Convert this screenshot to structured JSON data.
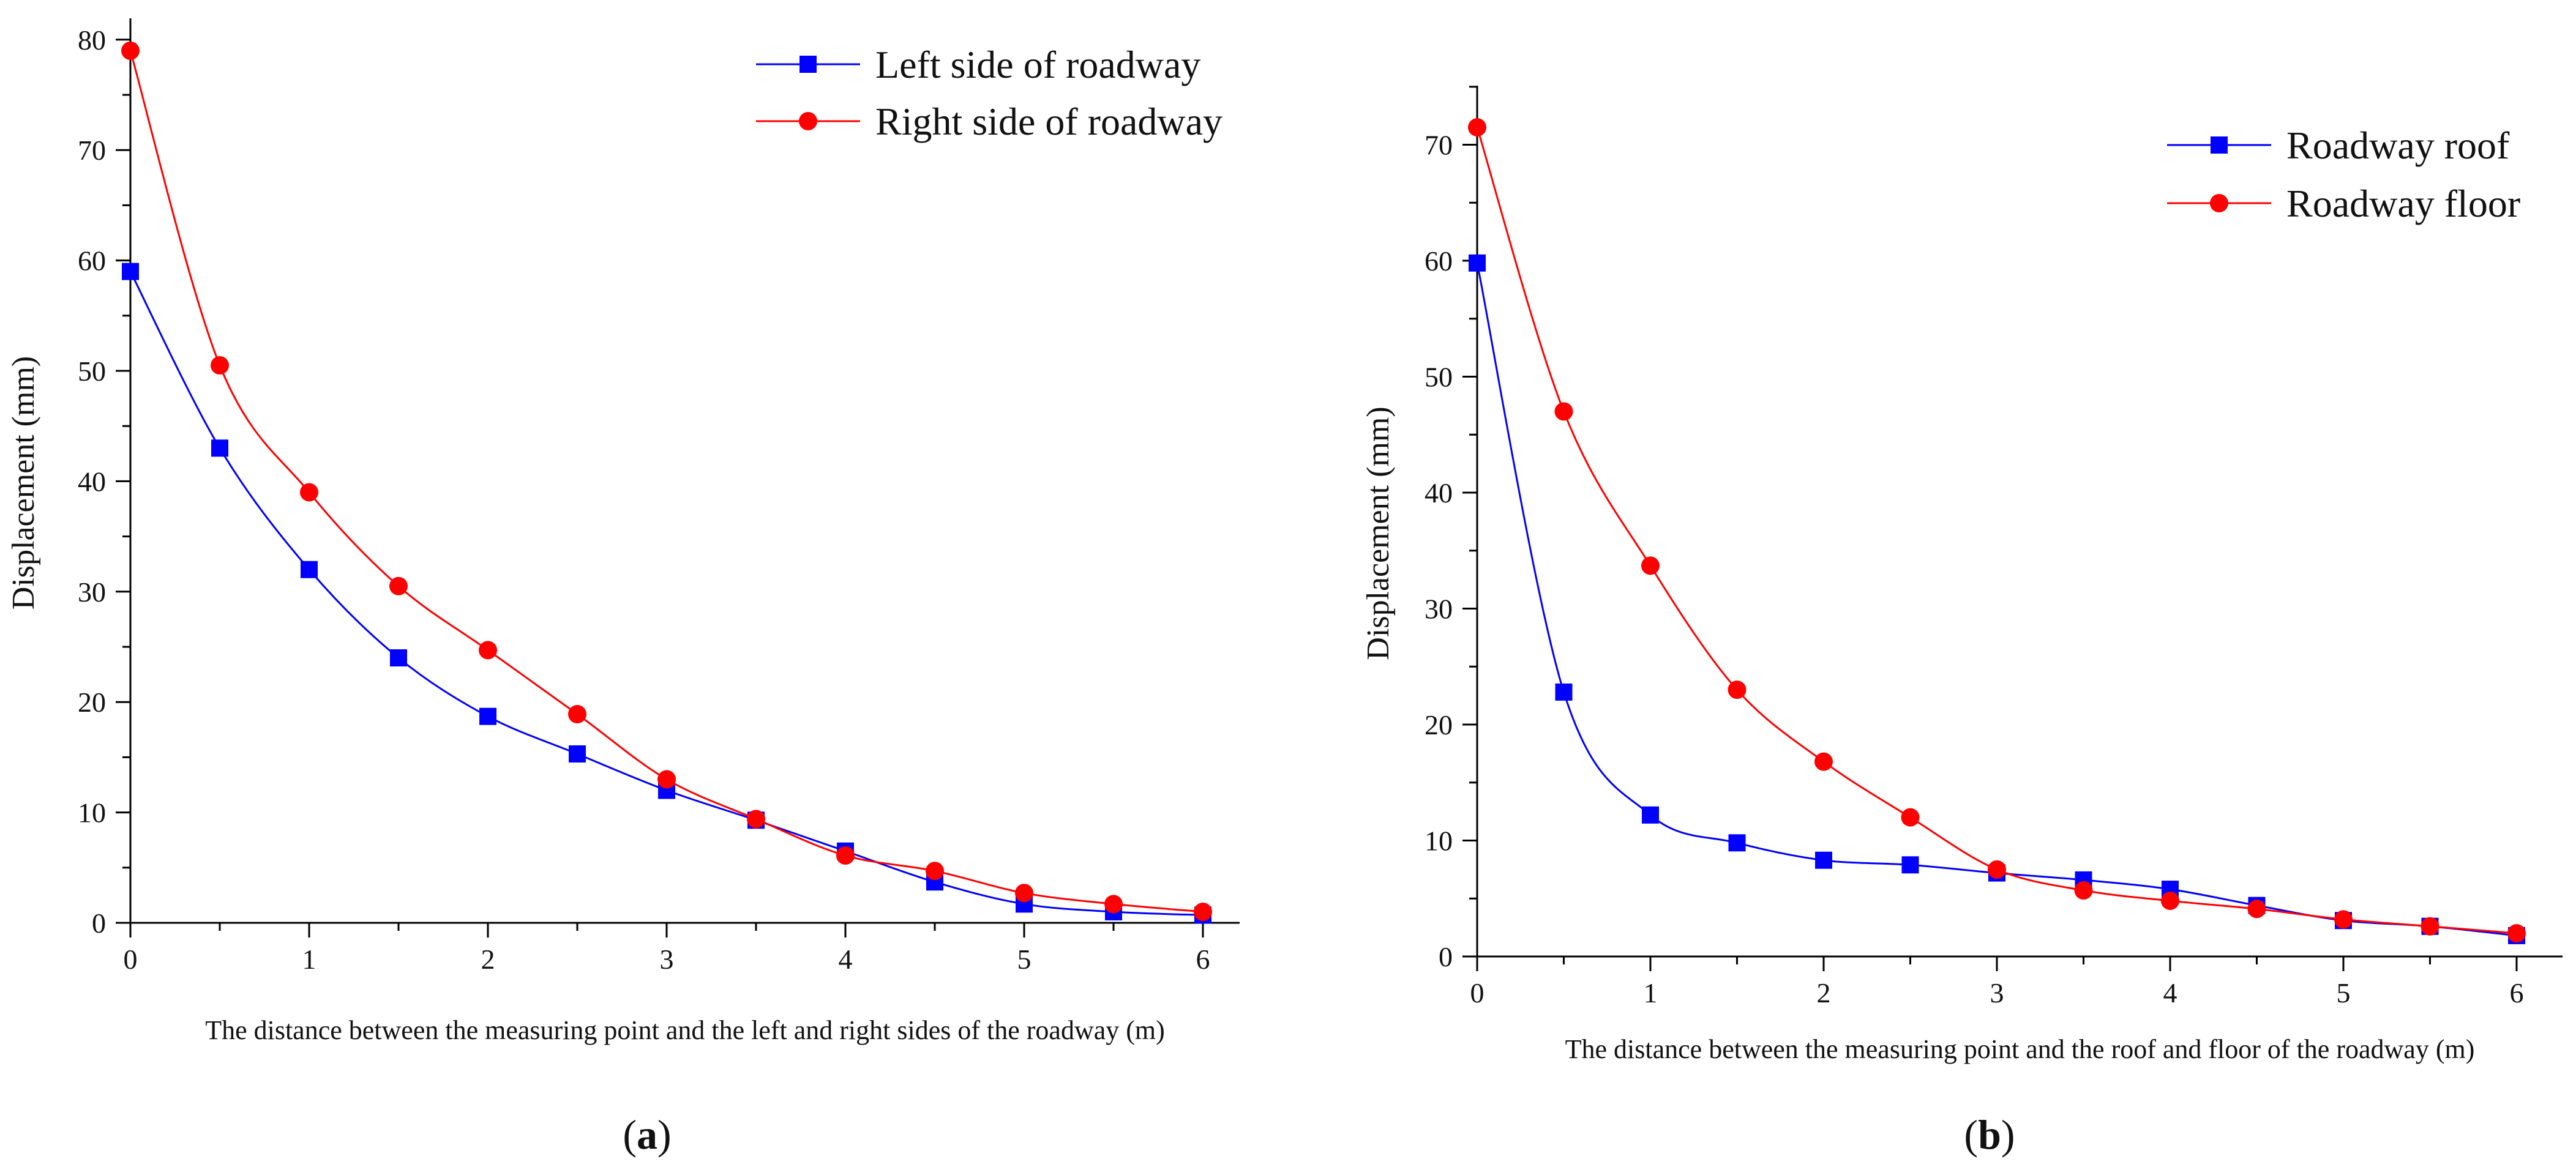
{
  "chart_data": [
    {
      "type": "line",
      "panel_label": "a",
      "caption_open": "(",
      "caption_close": ")",
      "xlabel": "The distance between the measuring point and the left and right sides of the roadway (m)",
      "ylabel": "Displacement (mm)",
      "xlim": [
        0,
        6.2
      ],
      "ylim": [
        0,
        80
      ],
      "xticks": [
        0,
        1,
        2,
        3,
        4,
        5,
        6
      ],
      "yticks": [
        0,
        10,
        20,
        30,
        40,
        50,
        60,
        70,
        80
      ],
      "legend_position": "top-right",
      "series": [
        {
          "name": "Left side of roadway",
          "color": "#0000ff",
          "marker": "square",
          "x": [
            0,
            0.5,
            1,
            1.5,
            2,
            2.5,
            3,
            3.5,
            4,
            4.5,
            5,
            5.5,
            6
          ],
          "y": [
            59,
            43,
            32,
            24,
            18.7,
            15.3,
            12,
            9.3,
            6.5,
            3.7,
            1.7,
            1,
            0.7
          ]
        },
        {
          "name": "Right side of roadway",
          "color": "#ff0000",
          "marker": "circle",
          "x": [
            0,
            0.5,
            1,
            1.5,
            2,
            2.5,
            3,
            3.5,
            4,
            4.5,
            5,
            5.5,
            6
          ],
          "y": [
            79,
            50.5,
            39,
            30.5,
            24.7,
            18.9,
            13,
            9.4,
            6.1,
            4.7,
            2.7,
            1.7,
            1
          ]
        }
      ]
    },
    {
      "type": "line",
      "panel_label": "b",
      "caption_open": "(",
      "caption_close": ")",
      "xlabel": "The distance between the measuring point and the roof and floor of the roadway (m)",
      "ylabel": "Displacement (mm)",
      "xlim": [
        0,
        6.2
      ],
      "ylim": [
        0,
        75
      ],
      "xticks": [
        0,
        1,
        2,
        3,
        4,
        5,
        6
      ],
      "yticks": [
        0,
        10,
        20,
        30,
        40,
        50,
        60,
        70
      ],
      "legend_position": "top-right",
      "series": [
        {
          "name": "Roadway roof",
          "color": "#0000ff",
          "marker": "square",
          "x": [
            0,
            0.5,
            1,
            1.5,
            2,
            2.5,
            3,
            3.5,
            4,
            4.5,
            5,
            5.5,
            6
          ],
          "y": [
            59.8,
            22.8,
            12.2,
            9.8,
            8.3,
            7.9,
            7.2,
            6.6,
            5.8,
            4.4,
            3.1,
            2.6,
            1.8
          ]
        },
        {
          "name": "Roadway floor",
          "color": "#ff0000",
          "marker": "circle",
          "x": [
            0,
            0.5,
            1,
            1.5,
            2,
            2.5,
            3,
            3.5,
            4,
            4.5,
            5,
            5.5,
            6
          ],
          "y": [
            71.5,
            47,
            33.7,
            23,
            16.8,
            12,
            7.5,
            5.7,
            4.8,
            4.1,
            3.2,
            2.6,
            2
          ]
        }
      ]
    }
  ]
}
